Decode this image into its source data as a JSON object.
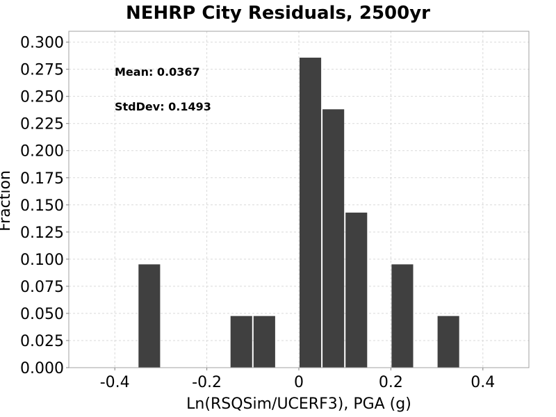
{
  "chart_data": {
    "type": "bar",
    "title": "NEHRP City Residuals, 2500yr",
    "xlabel": "Ln(RSQSim/UCERF3), PGA (g)",
    "ylabel": "Fraction",
    "xlim": [
      -0.5,
      0.5
    ],
    "ylim": [
      0.0,
      0.31
    ],
    "grid": true,
    "bar_color": "#404040",
    "bin_width": 0.05,
    "x": [
      -0.325,
      -0.125,
      -0.075,
      0.025,
      0.075,
      0.125,
      0.225,
      0.325
    ],
    "values": [
      0.0952,
      0.0476,
      0.0476,
      0.2857,
      0.2381,
      0.1429,
      0.0952,
      0.0476
    ],
    "x_ticks": [
      -0.4,
      -0.2,
      0.0,
      0.2,
      0.4
    ],
    "x_tick_labels": [
      "-0.4",
      "-0.2",
      "0",
      "0.2",
      "0.4"
    ],
    "y_ticks": [
      0.0,
      0.025,
      0.05,
      0.075,
      0.1,
      0.125,
      0.15,
      0.175,
      0.2,
      0.225,
      0.25,
      0.275,
      0.3
    ],
    "y_tick_labels": [
      "0.000",
      "0.025",
      "0.050",
      "0.075",
      "0.100",
      "0.125",
      "0.150",
      "0.175",
      "0.200",
      "0.225",
      "0.250",
      "0.275",
      "0.300"
    ],
    "annotations": [
      "Mean: 0.0367",
      "StdDev: 0.1493"
    ]
  }
}
